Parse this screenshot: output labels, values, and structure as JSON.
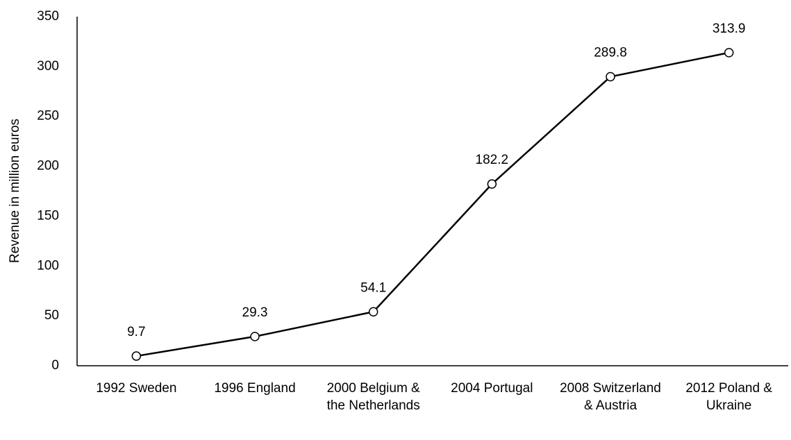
{
  "chart_data": {
    "type": "line",
    "y_label": "Revenue in million euros",
    "categories": [
      "1992 Sweden",
      "1996 England",
      "2000 Belgium & the Netherlands",
      "2004 Portugal",
      "2008 Switzerland & Austria",
      "2012 Poland & Ukraine"
    ],
    "values": [
      9.7,
      29.3,
      54.1,
      182.2,
      289.8,
      313.9
    ],
    "color": "#000000",
    "ylim": [
      0,
      350
    ],
    "yticks": [
      0,
      50,
      100,
      150,
      200,
      250,
      300,
      350
    ],
    "grid": false,
    "data_labels": true
  }
}
